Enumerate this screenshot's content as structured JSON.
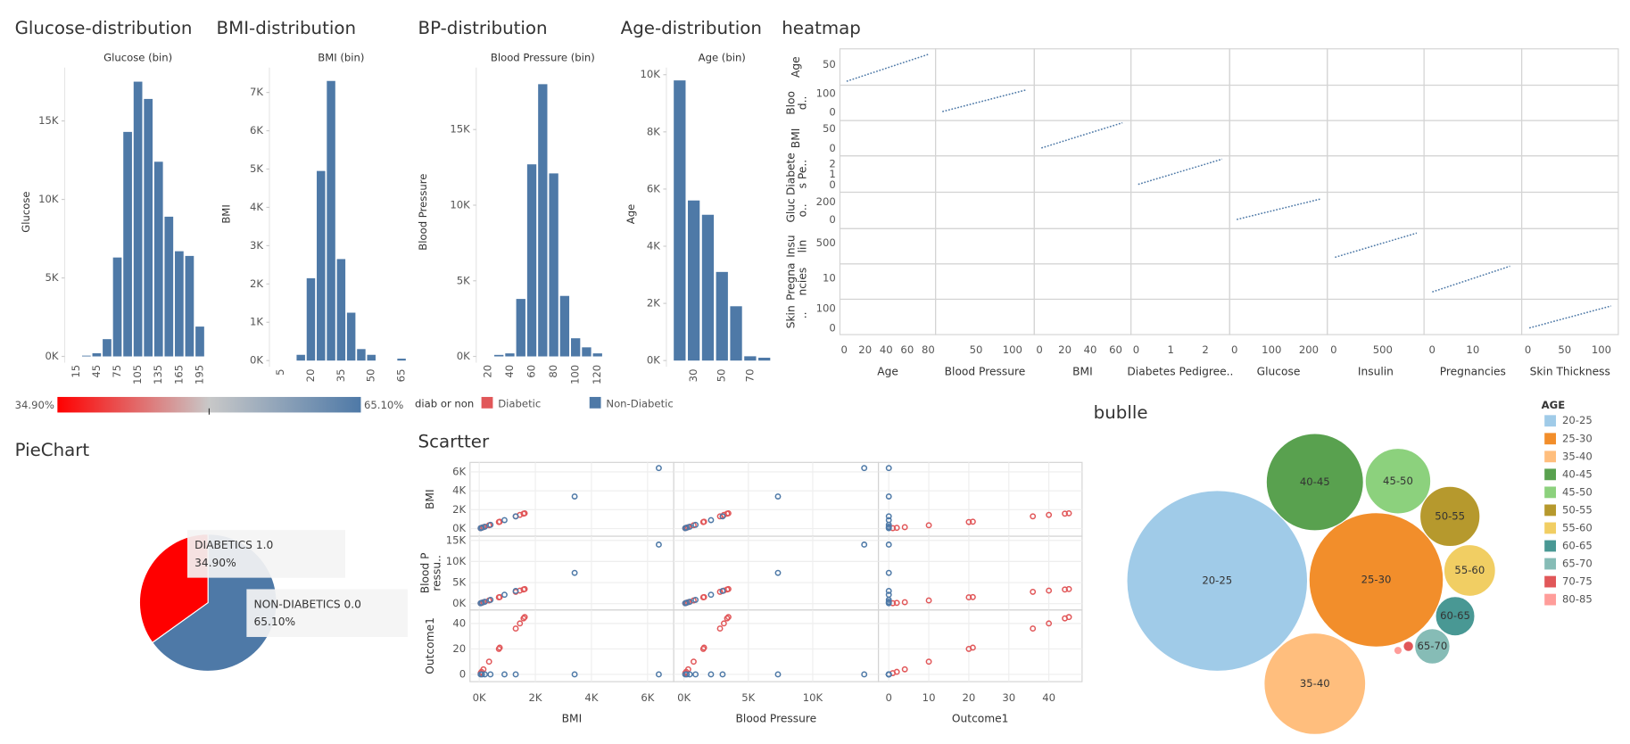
{
  "chart_data": [
    {
      "type": "bar",
      "title": "Glucose-distribution",
      "subtitle": "Glucose (bin)",
      "y_label": "Glucose",
      "categories": [
        "15",
        null,
        "45",
        null,
        "75",
        null,
        "105",
        null,
        "135",
        null,
        "165",
        null,
        "195"
      ],
      "values": [
        0,
        50,
        200,
        1100,
        6300,
        14300,
        17500,
        16400,
        12400,
        8900,
        6700,
        6400,
        1900
      ],
      "color": "#4e79a7",
      "ylim": [
        0,
        18400
      ],
      "yticks": [
        {
          "value": 0,
          "label": "0K"
        },
        {
          "value": 5000,
          "label": "5K"
        },
        {
          "value": 10000,
          "label": "10K"
        },
        {
          "value": 15000,
          "label": "15K"
        }
      ]
    },
    {
      "type": "bar",
      "title": "BMI-distribution",
      "subtitle": "BMI (bin)",
      "y_label": "BMI",
      "categories": [
        "5",
        null,
        null,
        "20",
        null,
        null,
        "35",
        null,
        null,
        "50",
        null,
        null,
        "65"
      ],
      "values": [
        0,
        0,
        150,
        2150,
        4950,
        7300,
        2650,
        1250,
        300,
        150,
        0,
        0,
        50
      ],
      "color": "#4e79a7",
      "ylim": [
        0,
        7650
      ],
      "yticks": [
        {
          "value": 0,
          "label": "0K"
        },
        {
          "value": 1000,
          "label": "1K"
        },
        {
          "value": 2000,
          "label": "2K"
        },
        {
          "value": 3000,
          "label": "3K"
        },
        {
          "value": 4000,
          "label": "4K"
        },
        {
          "value": 5000,
          "label": "5K"
        },
        {
          "value": 6000,
          "label": "6K"
        },
        {
          "value": 7000,
          "label": "7K"
        }
      ]
    },
    {
      "type": "bar",
      "title": "BP-distribution",
      "subtitle": "Blood Pressure (bin)",
      "y_label": "Blood Pressure",
      "categories": [
        "20",
        null,
        "40",
        null,
        "60",
        null,
        "80",
        null,
        "100",
        null,
        "120"
      ],
      "values": [
        0,
        100,
        200,
        3800,
        12700,
        18000,
        12100,
        4000,
        1200,
        600,
        200
      ],
      "color": "#4e79a7",
      "ylim": [
        0,
        19100
      ],
      "yticks": [
        {
          "value": 0,
          "label": "0K"
        },
        {
          "value": 5000,
          "label": "5K"
        },
        {
          "value": 10000,
          "label": "10K"
        },
        {
          "value": 15000,
          "label": "15K"
        }
      ]
    },
    {
      "type": "bar",
      "title": "Age-distribution",
      "subtitle": "Age (bin)",
      "y_label": "Age",
      "categories": [
        null,
        "30",
        null,
        "50",
        null,
        "70",
        null
      ],
      "values": [
        9800,
        5600,
        5100,
        3100,
        1900,
        150,
        100
      ],
      "color": "#4e79a7",
      "ylim": [
        0,
        10250
      ],
      "yticks": [
        {
          "value": 0,
          "label": "0K"
        },
        {
          "value": 2000,
          "label": "2K"
        },
        {
          "value": 4000,
          "label": "4K"
        },
        {
          "value": 6000,
          "label": "6K"
        },
        {
          "value": 8000,
          "label": "8K"
        },
        {
          "value": 10000,
          "label": "10K"
        }
      ]
    },
    {
      "type": "pie",
      "title": "PieChart",
      "categories": [
        "DIABETICS 1.0",
        "NON-DIABETICS 0.0"
      ],
      "values": [
        34.9,
        65.1
      ],
      "value_labels": [
        "34.90%",
        "65.10%"
      ],
      "colors": [
        "#ff0000",
        "#4e79a7"
      ]
    },
    {
      "type": "scatter-matrix",
      "title": "Scartter",
      "legend_title": "diab or non",
      "dimensions": [
        {
          "name": "BMI",
          "row_label": "BMI",
          "xlim": [
            -330,
            6930
          ],
          "ylim": [
            -800,
            7000
          ],
          "xticks": [
            {
              "value": 0,
              "label": "0K"
            },
            {
              "value": 2000,
              "label": "2K"
            },
            {
              "value": 4000,
              "label": "4K"
            },
            {
              "value": 6000,
              "label": "6K"
            }
          ],
          "yticks": [
            {
              "value": 0,
              "label": "0K"
            },
            {
              "value": 2000,
              "label": "2K"
            },
            {
              "value": 4000,
              "label": "4K"
            },
            {
              "value": 6000,
              "label": "6K"
            }
          ]
        },
        {
          "name": "Blood Pressure",
          "row_label": "Blood Pressu..",
          "xlim": [
            -800,
            15100
          ],
          "ylim": [
            -1500,
            16000
          ],
          "xticks": [
            {
              "value": 0,
              "label": "0K"
            },
            {
              "value": 5000,
              "label": "5K"
            },
            {
              "value": 10000,
              "label": "10K"
            }
          ],
          "yticks": [
            {
              "value": 0,
              "label": "0K"
            },
            {
              "value": 5000,
              "label": "5K"
            },
            {
              "value": 10000,
              "label": "10K"
            },
            {
              "value": 15000,
              "label": "15K"
            }
          ]
        },
        {
          "name": "Outcome1",
          "row_label": "Outcome1",
          "xlim": [
            -2.6,
            48.3
          ],
          "ylim": [
            -5.7,
            50.6
          ],
          "xticks": [
            0,
            10,
            20,
            30,
            40
          ],
          "yticks": [
            0,
            20,
            40
          ]
        }
      ],
      "series": [
        {
          "name": "Diabetic",
          "color": "#e15759",
          "values": [
            [
              50,
              80,
              150,
              350,
              700,
              730,
              1300,
              1450,
              1580,
              1620
            ],
            [
              100,
              170,
              330,
              750,
              1500,
              1560,
              2800,
              3100,
              3350,
              3450
            ],
            [
              1,
              2,
              4,
              10,
              20,
              21,
              36,
              40,
              44,
              45
            ]
          ]
        },
        {
          "name": "Non-Diabetic",
          "color": "#4e79a7",
          "values": [
            [
              6400,
              3400,
              1300,
              900,
              400,
              200,
              100,
              50
            ],
            [
              14000,
              7300,
              3000,
              2100,
              900,
              450,
              220,
              100
            ],
            [
              0,
              0,
              0,
              0,
              0,
              0,
              0,
              0
            ]
          ]
        }
      ]
    },
    {
      "type": "scatter-matrix",
      "title": "heatmap",
      "dimensions": [
        {
          "name": "Age",
          "row_label": "Age",
          "xlim": [
            -4,
            87
          ],
          "ylim": [
            -9,
            96
          ],
          "xticks": [
            0,
            20,
            40,
            60,
            80
          ],
          "yticks": [
            50
          ]
        },
        {
          "name": "Blood Pressure",
          "row_label": "Blood..",
          "xlim": [
            -5.7,
            130
          ],
          "ylim": [
            -44,
            144
          ],
          "xticks": [
            50,
            100
          ],
          "yticks": [
            0,
            100
          ]
        },
        {
          "name": "BMI",
          "row_label": "BMI",
          "xlim": [
            -4.1,
            72
          ],
          "ylim": [
            -18.4,
            71
          ],
          "xticks": [
            0,
            20,
            40,
            60
          ],
          "yticks": [
            0,
            50
          ]
        },
        {
          "name": "Diabetes Pedigree..",
          "row_label": "Diabetes Pe..",
          "xlim": [
            -0.15,
            2.7
          ],
          "ylim": [
            -0.7,
            2.8
          ],
          "xticks": [
            0,
            1,
            2
          ],
          "yticks": [
            0,
            1,
            2
          ]
        },
        {
          "name": "Glucose",
          "row_label": "Gluco..",
          "xlim": [
            -13,
            250
          ],
          "ylim": [
            -94,
            306
          ],
          "xticks": [
            0,
            100,
            200
          ],
          "yticks": [
            0,
            200
          ]
        },
        {
          "name": "Insulin",
          "row_label": "Insulin",
          "xlim": [
            -64,
            920
          ],
          "ylim": [
            -214,
            1000
          ],
          "xticks": [
            0,
            500
          ],
          "yticks": [
            500
          ]
        },
        {
          "name": "Pregnancies",
          "row_label": "Pregnancies",
          "xlim": [
            -2,
            22
          ],
          "ylim": [
            -5.4,
            20.8
          ],
          "xticks": [
            0,
            10
          ],
          "yticks": [
            10
          ]
        },
        {
          "name": "Skin Thickness",
          "row_label": "Skin ..",
          "xlim": [
            -8.5,
            123
          ],
          "ylim": [
            -31.6,
            147
          ],
          "xticks": [
            0,
            50,
            100
          ],
          "yticks": [
            0,
            100
          ]
        }
      ]
    },
    {
      "type": "bubble",
      "title": "bublle",
      "legend_title": "AGE",
      "categories": [
        "20-25",
        "25-30",
        "35-40",
        "40-45",
        "45-50",
        "50-55",
        "55-60",
        "60-65",
        "65-70",
        "70-75",
        "80-85"
      ],
      "values": [
        760,
        420,
        240,
        220,
        100,
        84,
        62,
        36,
        29,
        2.5,
        1.6
      ],
      "colors": [
        "#a0cbe8",
        "#f28e2b",
        "#ffbe7d",
        "#59a14f",
        "#8cd17d",
        "#b6992d",
        "#f1ce63",
        "#499894",
        "#86bcb6",
        "#e15759",
        "#ff9d9a"
      ]
    }
  ]
}
